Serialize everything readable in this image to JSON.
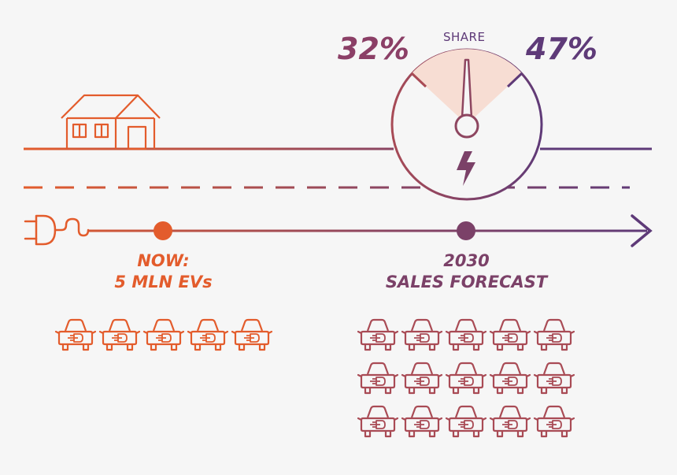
{
  "gauge": {
    "label": "SHARE",
    "low_value": "32%",
    "high_value": "47%",
    "icon": "lightning-bolt-icon"
  },
  "milestones": {
    "now": {
      "line1": "NOW:",
      "line2": "5 MLN EVs",
      "car_count": 5
    },
    "forecast": {
      "line1": "2030",
      "line2": "SALES FORECAST",
      "car_count": 15
    }
  },
  "icons": {
    "house": "house-icon",
    "plug": "power-plug-icon",
    "car": "electric-car-icon",
    "arrow": "arrowhead-icon"
  },
  "colors": {
    "orange": "#e35c2c",
    "purple": "#5e3a78",
    "mid": "#a94b55",
    "background": "#f6f6f6",
    "gauge_highlight": "#f7ddd3"
  }
}
